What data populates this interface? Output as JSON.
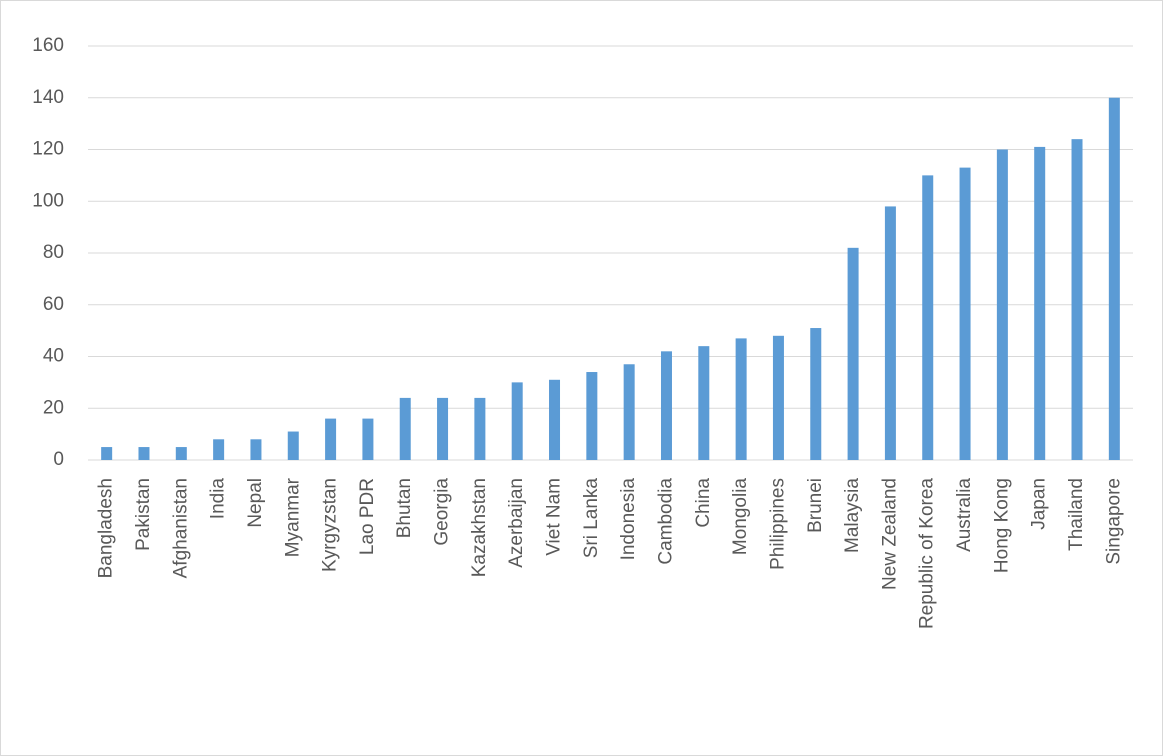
{
  "chart_data": {
    "type": "bar",
    "categories": [
      "Bangladesh",
      "Pakistan",
      "Afghanistan",
      "India",
      "Nepal",
      "Myanmar",
      "Kyrgyzstan",
      "Lao PDR",
      "Bhutan",
      "Georgia",
      "Kazakhstan",
      "Azerbaijan",
      "Viet Nam",
      "Sri Lanka",
      "Indonesia",
      "Cambodia",
      "China",
      "Mongolia",
      "Philippines",
      "Brunei",
      "Malaysia",
      "New Zealand",
      "Republic of Korea",
      "Australia",
      "Hong Kong",
      "Japan",
      "Thailand",
      "Singapore"
    ],
    "values": [
      5,
      5,
      5,
      8,
      8,
      11,
      16,
      16,
      24,
      24,
      24,
      30,
      31,
      34,
      37,
      42,
      44,
      47,
      48,
      51,
      82,
      98,
      110,
      113,
      120,
      121,
      124,
      140
    ],
    "color": "#5b9bd5",
    "ylim": [
      0,
      160
    ],
    "yticks": [
      0,
      20,
      40,
      60,
      80,
      100,
      120,
      140,
      160
    ],
    "grid": true
  }
}
